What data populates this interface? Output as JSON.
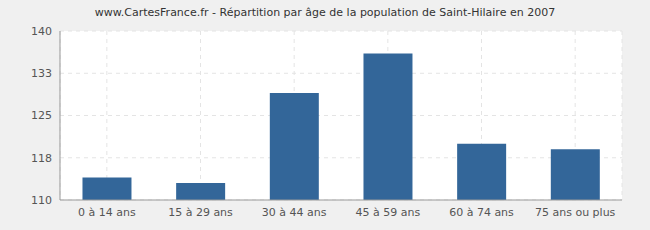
{
  "chart_data": {
    "type": "bar",
    "title": "www.CartesFrance.fr - Répartition par âge de la population de Saint-Hilaire en 2007",
    "categories": [
      "0 à 14 ans",
      "15 à 29 ans",
      "30 à 44 ans",
      "45 à 59 ans",
      "60 à 74 ans",
      "75 ans ou plus"
    ],
    "values": [
      114,
      113,
      129,
      136,
      120,
      119
    ],
    "color": "#336699",
    "ylim": [
      110,
      140
    ],
    "yticks": [
      110,
      {
        "value": 117.5,
        "label": "118"
      },
      125,
      {
        "value": 132.5,
        "label": "133"
      },
      140
    ],
    "grid": true
  }
}
